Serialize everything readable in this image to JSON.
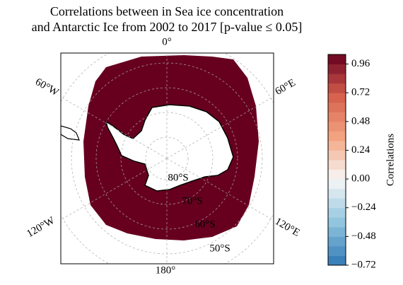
{
  "title": [
    "Correlations between in Sea ice concentration",
    "and Antarctic Ice from 2002 to 2017 [p-value ≤ 0.05]"
  ],
  "map": {
    "lon_labels": [
      "0°",
      "60°E",
      "120°E",
      "180°",
      "120°W",
      "60°W"
    ],
    "lat_labels": [
      "80°S",
      "70°S",
      "60°S",
      "50°S"
    ]
  },
  "colorbar": {
    "label": "Correlations",
    "cmap": "RdBu_r",
    "lim": [
      -0.72,
      1.04
    ],
    "ticks": [
      {
        "value": -0.72,
        "label": "−0.72"
      },
      {
        "value": -0.48,
        "label": "−0.48"
      },
      {
        "value": -0.24,
        "label": "−0.24"
      },
      {
        "value": 0,
        "label": "0.00"
      },
      0.24,
      0.48,
      0.72,
      0.96
    ]
  }
}
